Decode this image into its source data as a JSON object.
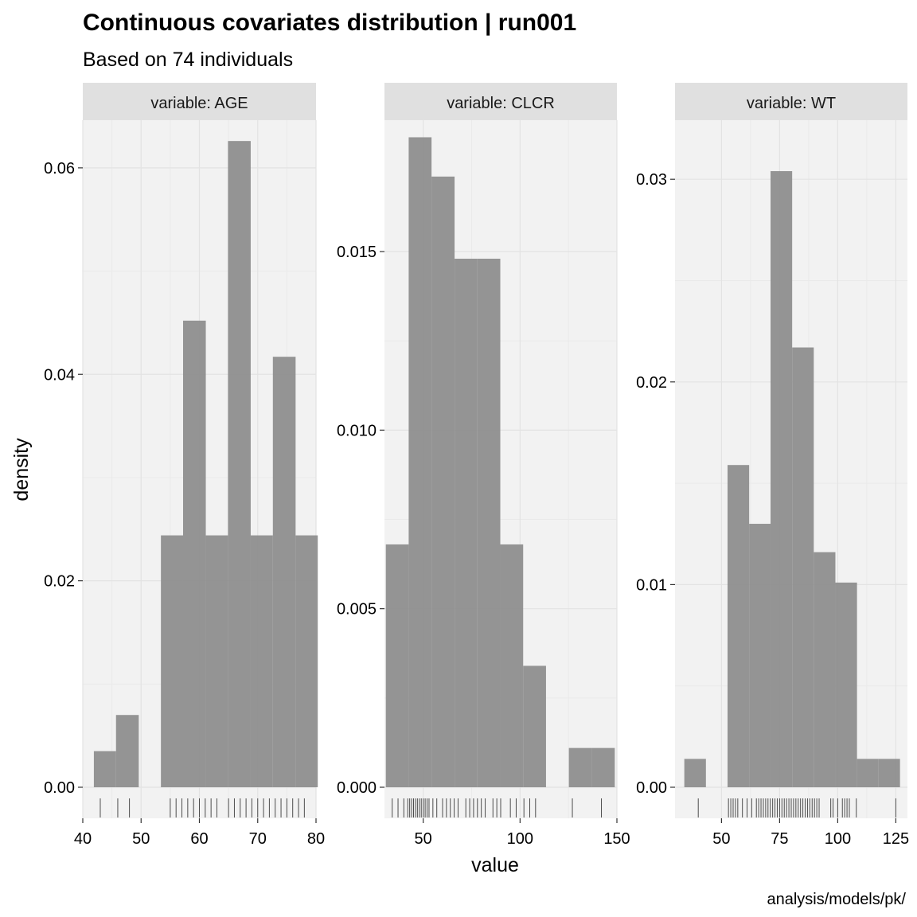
{
  "chart_data": {
    "type": "bar",
    "title": "Continuous covariates distribution | run001",
    "subtitle": "Based on 74 individuals",
    "xlabel": "value",
    "ylabel": "density",
    "caption": "analysis/models/pk/",
    "grid": true,
    "legend": "none",
    "bar_color": "#8c8c8c",
    "rug_color": "#4d4d4d",
    "panel_background": "#f2f2f2",
    "strip_background": "#e0e0e0",
    "panels": [
      {
        "strip": "variable: AGE",
        "xlim": [
          40,
          80
        ],
        "ylim": [
          0,
          0.064
        ],
        "x_ticks": [
          40,
          50,
          60,
          70,
          80
        ],
        "x_tick_labels": [
          "40",
          "50",
          "60",
          "70",
          "80"
        ],
        "y_ticks": [
          0,
          0.02,
          0.04,
          0.06
        ],
        "y_tick_labels": [
          "0.00",
          "0.02",
          "0.04",
          "0.06"
        ],
        "bins": [
          {
            "x0": 41.9,
            "x1": 45.7,
            "density": 0.0035
          },
          {
            "x0": 45.7,
            "x1": 49.6,
            "density": 0.007
          },
          {
            "x0": 53.4,
            "x1": 57.2,
            "density": 0.0244
          },
          {
            "x0": 57.2,
            "x1": 61.1,
            "density": 0.0452
          },
          {
            "x0": 61.1,
            "x1": 64.9,
            "density": 0.0244
          },
          {
            "x0": 64.9,
            "x1": 68.8,
            "density": 0.0626
          },
          {
            "x0": 68.8,
            "x1": 72.6,
            "density": 0.0244
          },
          {
            "x0": 72.6,
            "x1": 76.5,
            "density": 0.0417
          },
          {
            "x0": 76.5,
            "x1": 80.3,
            "density": 0.0244
          }
        ],
        "rug": [
          43,
          46,
          48,
          55,
          56,
          57,
          58,
          59,
          60,
          61,
          62,
          63,
          65,
          66,
          67,
          68,
          69,
          70,
          71,
          72,
          73,
          74,
          75,
          76,
          77,
          78
        ]
      },
      {
        "strip": "variable: CLCR",
        "xlim": [
          30,
          150
        ],
        "ylim": [
          0,
          0.0185
        ],
        "x_ticks": [
          50,
          100,
          150
        ],
        "x_tick_labels": [
          "50",
          "100",
          "150"
        ],
        "y_ticks": [
          0,
          0.005,
          0.01,
          0.015
        ],
        "y_tick_labels": [
          "0.000",
          "0.005",
          "0.010",
          "0.015"
        ],
        "bins": [
          {
            "x0": 30.7,
            "x1": 42.5,
            "density": 0.0068
          },
          {
            "x0": 42.5,
            "x1": 54.3,
            "density": 0.0182
          },
          {
            "x0": 54.3,
            "x1": 66.2,
            "density": 0.0171
          },
          {
            "x0": 66.2,
            "x1": 78.0,
            "density": 0.0148
          },
          {
            "x0": 78.0,
            "x1": 89.8,
            "density": 0.0148
          },
          {
            "x0": 89.8,
            "x1": 101.6,
            "density": 0.0068
          },
          {
            "x0": 101.6,
            "x1": 113.4,
            "density": 0.0034
          },
          {
            "x0": 125.2,
            "x1": 137.1,
            "density": 0.0011
          },
          {
            "x0": 137.1,
            "x1": 148.9,
            "density": 0.0011
          }
        ],
        "rug": [
          34,
          37,
          40,
          42,
          43,
          44,
          45,
          46,
          47,
          48,
          49,
          50,
          51,
          52,
          53,
          55,
          57,
          60,
          62,
          64,
          66,
          68,
          72,
          74,
          76,
          78,
          80,
          82,
          86,
          88,
          90,
          95,
          98,
          102,
          105,
          108,
          127,
          142
        ]
      },
      {
        "strip": "variable: WT",
        "xlim": [
          30,
          130
        ],
        "ylim": [
          0,
          0.0326
        ],
        "x_ticks": [
          50,
          75,
          100,
          125
        ],
        "x_tick_labels": [
          "50",
          "75",
          "100",
          "125"
        ],
        "y_ticks": [
          0,
          0.01,
          0.02,
          0.03
        ],
        "y_tick_labels": [
          "0.00",
          "0.01",
          "0.02",
          "0.03"
        ],
        "bins": [
          {
            "x0": 34.0,
            "x1": 43.3,
            "density": 0.0014
          },
          {
            "x0": 52.6,
            "x1": 61.9,
            "density": 0.0159
          },
          {
            "x0": 61.9,
            "x1": 71.1,
            "density": 0.013
          },
          {
            "x0": 71.1,
            "x1": 80.4,
            "density": 0.0304
          },
          {
            "x0": 80.4,
            "x1": 89.7,
            "density": 0.0217
          },
          {
            "x0": 89.7,
            "x1": 99.0,
            "density": 0.0116
          },
          {
            "x0": 99.0,
            "x1": 108.3,
            "density": 0.0101
          },
          {
            "x0": 108.3,
            "x1": 117.6,
            "density": 0.0014
          },
          {
            "x0": 117.6,
            "x1": 126.8,
            "density": 0.0014
          }
        ],
        "rug": [
          40,
          53,
          54,
          55,
          56,
          57,
          59,
          61,
          63,
          65,
          66,
          67,
          68,
          69,
          70,
          71,
          72,
          73,
          74,
          75,
          76,
          77,
          78,
          79,
          80,
          81,
          82,
          83,
          84,
          85,
          86,
          87,
          88,
          89,
          90,
          91,
          92,
          97,
          98,
          100,
          102,
          103,
          104,
          105,
          108,
          125
        ]
      }
    ]
  }
}
